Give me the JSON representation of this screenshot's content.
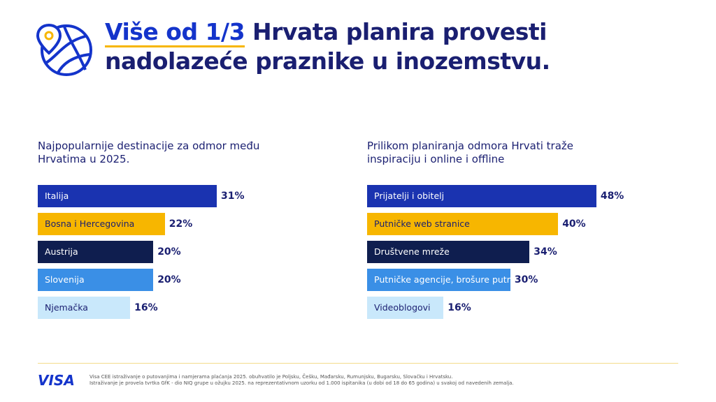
{
  "header": {
    "highlight": "Više od 1/3",
    "title_line1": "Hrvata planira provesti",
    "title_line2": "nadolazeće praznike u inozemstvu."
  },
  "chart_data": [
    {
      "type": "bar",
      "title": "Najpopularnije destinacije za odmor među Hrvatima u 2025.",
      "categories": [
        "Italija",
        "Bosna i Hercegovina",
        "Austrija",
        "Slovenija",
        "Njemačka"
      ],
      "values": [
        31,
        22,
        20,
        20,
        16
      ],
      "value_labels": [
        "31%",
        "22%",
        "20%",
        "20%",
        "16%"
      ],
      "colors": [
        "#1a33b0",
        "#f7b600",
        "#0f1e4f",
        "#3a8fe6",
        "#c9e8fb"
      ]
    },
    {
      "type": "bar",
      "title": "Prilikom planiranja odmora Hrvati traže inspiraciju i online i offline",
      "categories": [
        "Prijatelji i obitelj",
        "Putničke web stranice",
        "Društvene mreže",
        "Putničke agencije, brošure putničkih agencija",
        "Videoblogovi"
      ],
      "values": [
        48,
        40,
        34,
        30,
        16
      ],
      "value_labels": [
        "48%",
        "40%",
        "34%",
        "30%",
        "16%"
      ],
      "colors": [
        "#1a33b0",
        "#f7b600",
        "#0f1e4f",
        "#3a8fe6",
        "#c9e8fb"
      ]
    }
  ],
  "footer": {
    "logo": "VISA",
    "note1": "Visa CEE istraživanje o putovanjima i namjerama plaćanja 2025. obuhvatilo je Poljsku, Češku, Mađarsku, Rumunjsku, Bugarsku, Slovačku i Hrvatsku.",
    "note2": "Istraživanje je provela tvrtka GfK - dio NIQ grupe u ožujku 2025. na reprezentativnom uzorku od 1.000 ispitanika (u dobi od 18 do 65 godina) u svakoj od navedenih zemalja."
  }
}
